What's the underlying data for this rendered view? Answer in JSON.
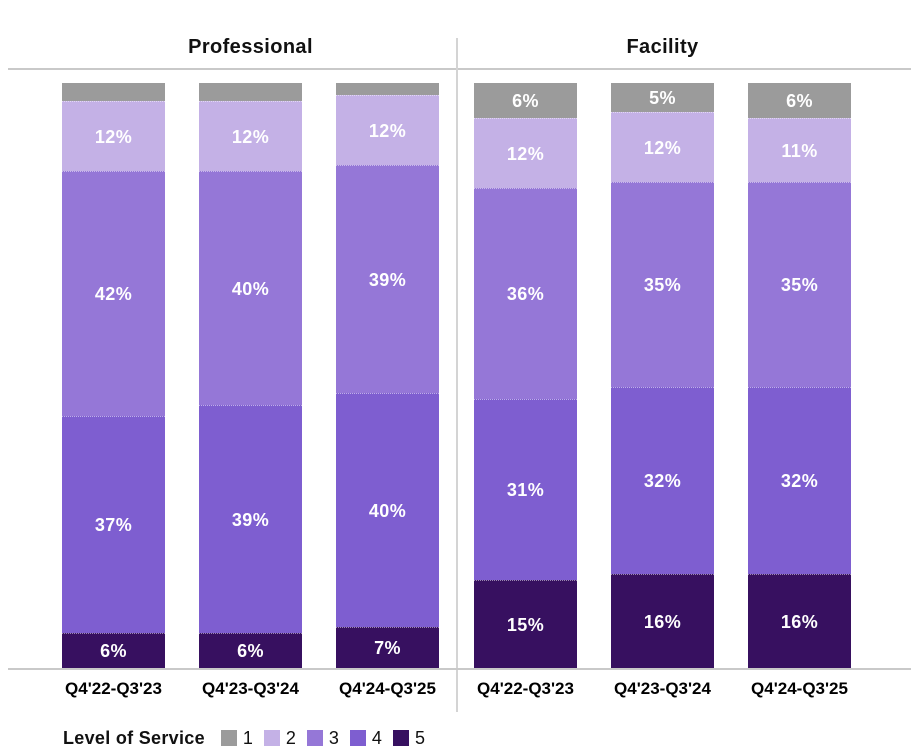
{
  "chart_data": [
    {
      "type": "bar",
      "stacked": true,
      "percent_stacked": true,
      "title": "Professional",
      "categories": [
        "Q4'22-Q3'23",
        "Q4'23-Q3'24",
        "Q4'24-Q3'25"
      ],
      "ylim": [
        0,
        100
      ],
      "grid": false,
      "series": [
        {
          "name": "1",
          "color": "#9b9b9b",
          "values": [
            3,
            3,
            2
          ],
          "labels": [
            "",
            "",
            ""
          ]
        },
        {
          "name": "2",
          "color": "#c4b1e6",
          "values": [
            12,
            12,
            12
          ],
          "labels": [
            "12%",
            "12%",
            "12%"
          ]
        },
        {
          "name": "3",
          "color": "#9577d7",
          "values": [
            42,
            40,
            39
          ],
          "labels": [
            "42%",
            "40%",
            "39%"
          ]
        },
        {
          "name": "4",
          "color": "#7e5ed0",
          "values": [
            37,
            39,
            40
          ],
          "labels": [
            "37%",
            "39%",
            "40%"
          ]
        },
        {
          "name": "5",
          "color": "#371060",
          "values": [
            6,
            6,
            7
          ],
          "labels": [
            "6%",
            "6%",
            "7%"
          ]
        }
      ]
    },
    {
      "type": "bar",
      "stacked": true,
      "percent_stacked": true,
      "title": "Facility",
      "categories": [
        "Q4'22-Q3'23",
        "Q4'23-Q3'24",
        "Q4'24-Q3'25"
      ],
      "ylim": [
        0,
        100
      ],
      "grid": false,
      "series": [
        {
          "name": "1",
          "color": "#9b9b9b",
          "values": [
            6,
            5,
            6
          ],
          "labels": [
            "6%",
            "5%",
            "6%"
          ]
        },
        {
          "name": "2",
          "color": "#c4b1e6",
          "values": [
            12,
            12,
            11
          ],
          "labels": [
            "12%",
            "12%",
            "11%"
          ]
        },
        {
          "name": "3",
          "color": "#9577d7",
          "values": [
            36,
            35,
            35
          ],
          "labels": [
            "36%",
            "35%",
            "35%"
          ]
        },
        {
          "name": "4",
          "color": "#7e5ed0",
          "values": [
            31,
            32,
            32
          ],
          "labels": [
            "31%",
            "32%",
            "32%"
          ]
        },
        {
          "name": "5",
          "color": "#371060",
          "values": [
            15,
            16,
            16
          ],
          "labels": [
            "15%",
            "16%",
            "16%"
          ]
        }
      ]
    }
  ],
  "legend": {
    "title": "Level of Service",
    "entries": [
      {
        "label": "1",
        "color": "#9b9b9b"
      },
      {
        "label": "2",
        "color": "#c4b1e6"
      },
      {
        "label": "3",
        "color": "#9577d7"
      },
      {
        "label": "4",
        "color": "#7e5ed0"
      },
      {
        "label": "5",
        "color": "#371060"
      }
    ]
  },
  "colors": {
    "axis_line": "#c9c9c9",
    "panel_divider": "#d4d4d4",
    "label_text": "#ffffff",
    "title_text": "#111111"
  }
}
